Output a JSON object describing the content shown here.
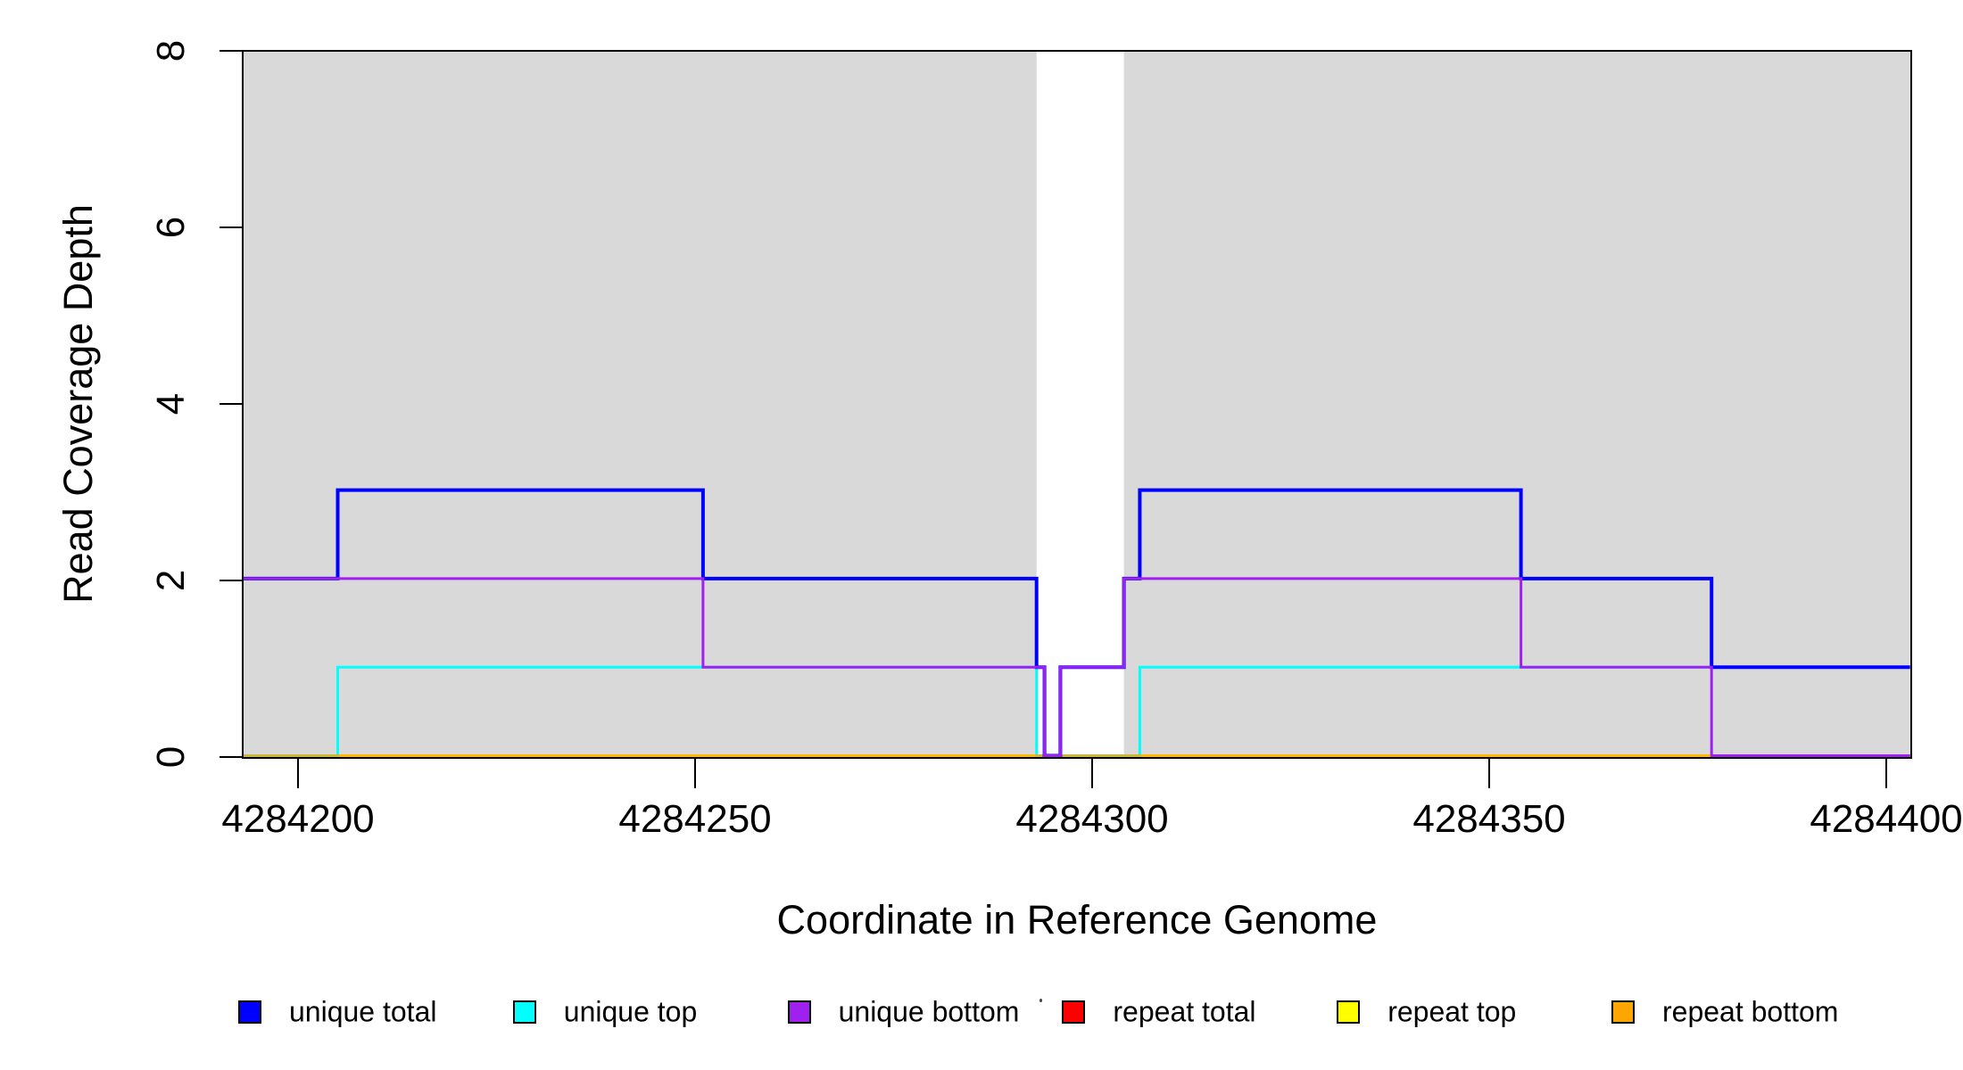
{
  "chart_data": {
    "type": "line",
    "subtype": "step-coverage-plot",
    "title": "",
    "xlabel": "Coordinate in Reference Genome",
    "ylabel": "Read Coverage Depth",
    "xlim": [
      4284193,
      4284403
    ],
    "ylim": [
      0,
      8
    ],
    "grid": false,
    "x_ticks": [
      4284200,
      4284250,
      4284300,
      4284350,
      4284400
    ],
    "y_ticks": [
      0,
      2,
      4,
      6,
      8
    ],
    "background_bands": {
      "description": "gray shaded genome regions separated by a white gap",
      "color": "#D9D9D9",
      "regions": [
        [
          4284193,
          4284293
        ],
        [
          4284304,
          4284403
        ]
      ]
    },
    "series": [
      {
        "name": "repeat total",
        "color": "#FF0000",
        "steps": [
          [
            4284193,
            0
          ],
          [
            4284403,
            0
          ]
        ]
      },
      {
        "name": "repeat top",
        "color": "#FFFF00",
        "steps": [
          [
            4284193,
            0
          ],
          [
            4284403,
            0
          ]
        ]
      },
      {
        "name": "unique top",
        "color": "#00FFFF",
        "steps": [
          [
            4284193,
            0
          ],
          [
            4284205,
            1
          ],
          [
            4284293,
            0
          ],
          [
            4284306,
            1
          ],
          [
            4284403,
            1
          ]
        ]
      },
      {
        "name": "repeat bottom",
        "color": "#FFA500",
        "steps": [
          [
            4284193,
            0
          ],
          [
            4284403,
            0
          ]
        ]
      },
      {
        "name": "unique total",
        "color": "#0000FF",
        "steps": [
          [
            4284193,
            2
          ],
          [
            4284205,
            3
          ],
          [
            4284251,
            2
          ],
          [
            4284293,
            1
          ],
          [
            4284294,
            0
          ],
          [
            4284296,
            1
          ],
          [
            4284304,
            2
          ],
          [
            4284306,
            3
          ],
          [
            4284354,
            2
          ],
          [
            4284378,
            1
          ],
          [
            4284403,
            1
          ]
        ]
      },
      {
        "name": "unique bottom",
        "color": "#A020F0",
        "steps": [
          [
            4284193,
            2
          ],
          [
            4284251,
            1
          ],
          [
            4284294,
            0
          ],
          [
            4284296,
            1
          ],
          [
            4284304,
            2
          ],
          [
            4284354,
            1
          ],
          [
            4284378,
            0
          ],
          [
            4284403,
            0
          ]
        ]
      }
    ],
    "legend_position": "bottom",
    "legend": [
      {
        "label": "unique total",
        "color": "#0000FF"
      },
      {
        "label": "unique top",
        "color": "#00FFFF"
      },
      {
        "label": "unique bottom",
        "color": "#A020F0"
      },
      {
        "label": "repeat total",
        "color": "#FF0000"
      },
      {
        "label": "repeat top",
        "color": "#FFFF00"
      },
      {
        "label": "repeat bottom",
        "color": "#FFA500"
      }
    ],
    "axis_color": "#000000"
  },
  "artifacts": {
    "dot": {
      "note": "tiny stray dot above legend between 'unique bottom' and 'repeat total'"
    }
  }
}
